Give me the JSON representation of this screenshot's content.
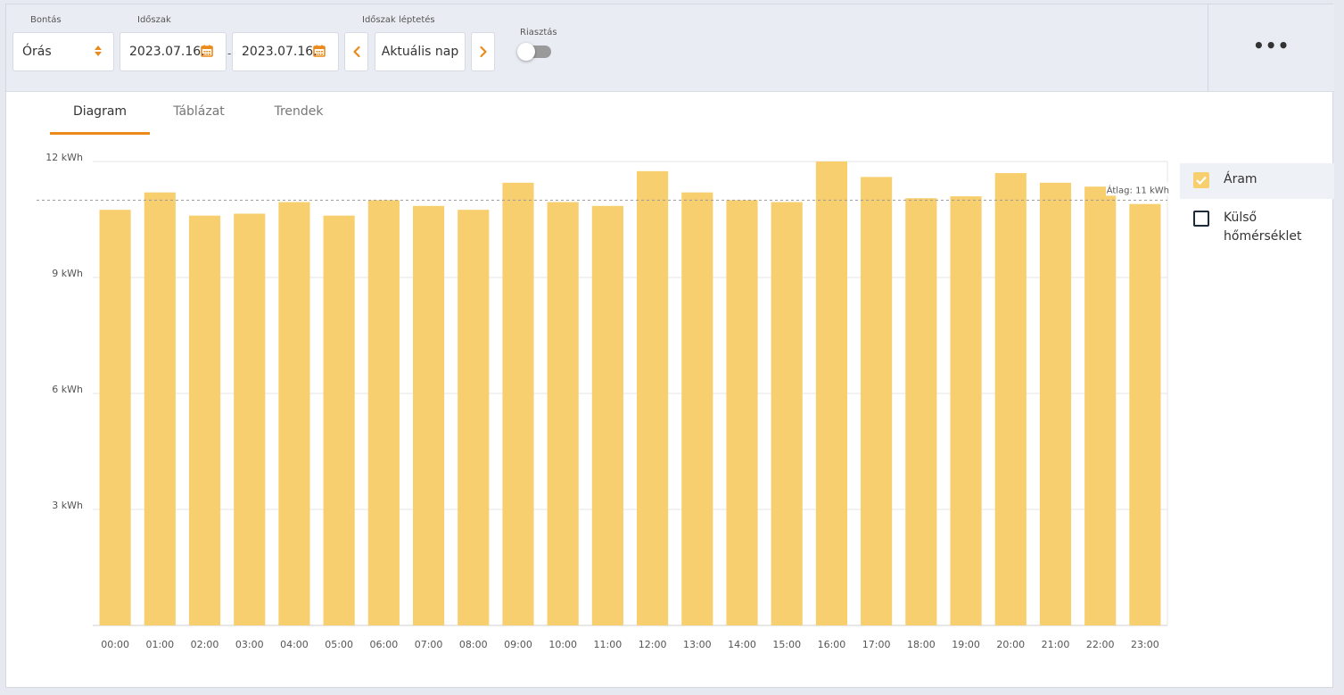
{
  "toolbar": {
    "breakdown_label": "Bontás",
    "breakdown_value": "Órás",
    "period_label": "Időszak",
    "date_from": "2023.07.16.",
    "date_sep": "-",
    "date_to": "2023.07.16.",
    "step_label": "Időszak léptetés",
    "current_label": "Aktuális nap",
    "alarm_label": "Riasztás",
    "alarm_on": false,
    "more_label": "•••"
  },
  "tabs": [
    {
      "label": "Diagram",
      "active": true
    },
    {
      "label": "Táblázat",
      "active": false
    },
    {
      "label": "Trendek",
      "active": false
    }
  ],
  "legend": [
    {
      "label": "Áram",
      "checked": true
    },
    {
      "label": "Külső hőmérséklet",
      "checked": false
    }
  ],
  "colors": {
    "accent": "#ea8a1a",
    "bar": "#f7cf6e"
  },
  "chart_data": {
    "type": "bar",
    "categories": [
      "00:00",
      "01:00",
      "02:00",
      "03:00",
      "04:00",
      "05:00",
      "06:00",
      "07:00",
      "08:00",
      "09:00",
      "10:00",
      "11:00",
      "12:00",
      "13:00",
      "14:00",
      "15:00",
      "16:00",
      "17:00",
      "18:00",
      "19:00",
      "20:00",
      "21:00",
      "22:00",
      "23:00"
    ],
    "values": [
      10.75,
      11.2,
      10.6,
      10.65,
      10.95,
      10.6,
      11.0,
      10.85,
      10.75,
      11.45,
      10.95,
      10.85,
      11.75,
      11.2,
      11.0,
      10.95,
      12.0,
      11.6,
      11.05,
      11.1,
      11.7,
      11.45,
      11.35,
      10.9
    ],
    "ylim": [
      0,
      12
    ],
    "yticks": [
      3,
      6,
      9,
      12
    ],
    "ytick_labels": [
      "3 kWh",
      "6 kWh",
      "9 kWh",
      "12 kWh"
    ],
    "average": 11,
    "average_label": "Átlag: 11 kWh",
    "grid": true
  }
}
